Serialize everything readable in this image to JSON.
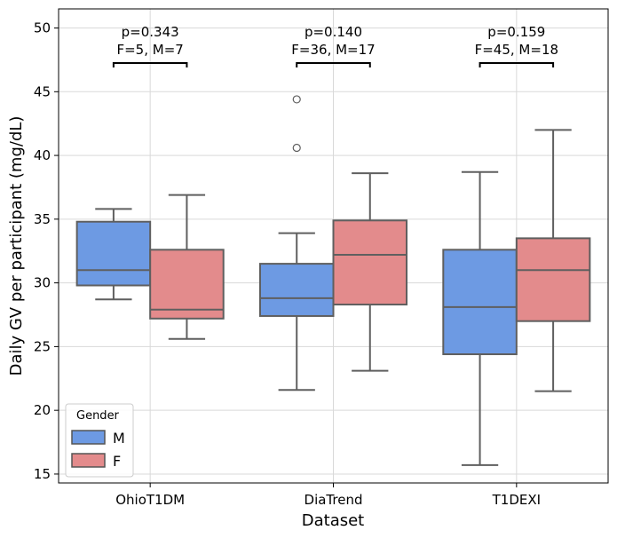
{
  "chart_data": {
    "type": "box",
    "title": "",
    "xlabel": "Dataset",
    "ylabel": "Daily GV per participant (mg/dL)",
    "ylim": [
      14.3,
      51.5
    ],
    "yticks": [
      15,
      20,
      25,
      30,
      35,
      40,
      45,
      50
    ],
    "grid": true,
    "categories": [
      "OhioT1DM",
      "DiaTrend",
      "T1DEXI"
    ],
    "legend": {
      "title": "Gender",
      "placement": "lower-left",
      "entries": [
        {
          "label": "M",
          "color": "#6d9ae3"
        },
        {
          "label": "F",
          "color": "#e38b8c"
        }
      ]
    },
    "series": [
      {
        "name": "M",
        "color": "#6d9ae3",
        "boxes": [
          {
            "whislo": 28.7,
            "q1": 29.8,
            "med": 31.0,
            "q3": 34.8,
            "whishi": 35.8,
            "fliers": []
          },
          {
            "whislo": 21.6,
            "q1": 27.4,
            "med": 28.8,
            "q3": 31.5,
            "whishi": 33.9,
            "fliers": [
              40.6,
              44.4
            ]
          },
          {
            "whislo": 15.7,
            "q1": 24.4,
            "med": 28.1,
            "q3": 32.6,
            "whishi": 38.7,
            "fliers": []
          }
        ]
      },
      {
        "name": "F",
        "color": "#e38b8c",
        "boxes": [
          {
            "whislo": 25.6,
            "q1": 27.2,
            "med": 27.9,
            "q3": 32.6,
            "whishi": 36.9,
            "fliers": []
          },
          {
            "whislo": 23.1,
            "q1": 28.3,
            "med": 32.2,
            "q3": 34.9,
            "whishi": 38.6,
            "fliers": []
          },
          {
            "whislo": 21.5,
            "q1": 27.0,
            "med": 31.0,
            "q3": 33.5,
            "whishi": 42.0,
            "fliers": []
          }
        ]
      }
    ],
    "annotations": [
      {
        "category": "OhioT1DM",
        "line1": "p=0.343",
        "line2": "F=5, M=7"
      },
      {
        "category": "DiaTrend",
        "line1": "p=0.140",
        "line2": "F=36, M=17"
      },
      {
        "category": "T1DEXI",
        "line1": "p=0.159",
        "line2": "F=45, M=18"
      }
    ]
  }
}
